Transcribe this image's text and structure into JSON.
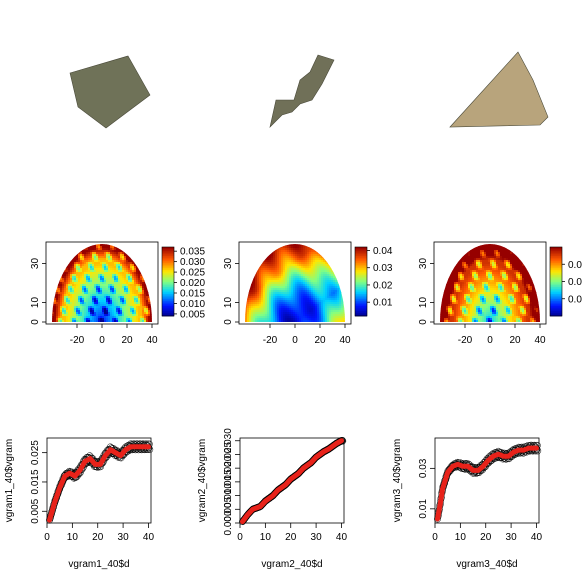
{
  "colors": {
    "patch1": "#6f7258",
    "patch2": "#707058",
    "patch3": "#b8a47c",
    "fit_line": "#e8221a",
    "points": "#000000"
  },
  "chart_data": [
    {
      "type": "image",
      "panel": "patch-1"
    },
    {
      "type": "image",
      "panel": "patch-2"
    },
    {
      "type": "image",
      "panel": "patch-3"
    },
    {
      "type": "heatmap",
      "panel": "vgram-map-1",
      "x_ticks": [
        "-20",
        "0",
        "20",
        "40"
      ],
      "y_ticks": [
        "0",
        "10",
        "30"
      ],
      "xlim": [
        -40,
        40
      ],
      "ylim": [
        0,
        40
      ],
      "colorbar_ticks": [
        "0.005",
        "0.010",
        "0.015",
        "0.020",
        "0.025",
        "0.030",
        "0.035"
      ],
      "value_range": [
        0.004,
        0.037
      ],
      "pattern": "periodic"
    },
    {
      "type": "heatmap",
      "panel": "vgram-map-2",
      "x_ticks": [
        "-20",
        "0",
        "20",
        "40"
      ],
      "y_ticks": [
        "0",
        "10",
        "30"
      ],
      "xlim": [
        -40,
        40
      ],
      "ylim": [
        0,
        40
      ],
      "colorbar_ticks": [
        "0.01",
        "0.02",
        "0.03",
        "0.04"
      ],
      "value_range": [
        0.002,
        0.042
      ],
      "pattern": "directional"
    },
    {
      "type": "heatmap",
      "panel": "vgram-map-3",
      "x_ticks": [
        "-20",
        "0",
        "20",
        "40"
      ],
      "y_ticks": [
        "0",
        "10",
        "30"
      ],
      "xlim": [
        -40,
        40
      ],
      "ylim": [
        0,
        40
      ],
      "colorbar_ticks": [
        "0.0",
        "0.0",
        "0.0"
      ],
      "value_range": [
        0.005,
        0.045
      ],
      "pattern": "periodic"
    },
    {
      "type": "scatter",
      "panel": "vgram1",
      "xlabel": "vgram1_40$d",
      "ylabel": "vgram1_40$vgram",
      "x_ticks": [
        "0",
        "10",
        "20",
        "30",
        "40"
      ],
      "y_ticks": [
        "0.005",
        "0.015",
        "0.025"
      ],
      "xlim": [
        0,
        41
      ],
      "ylim": [
        0.001,
        0.03
      ],
      "curve": [
        [
          1,
          0.002
        ],
        [
          3,
          0.008
        ],
        [
          5,
          0.013
        ],
        [
          7,
          0.017
        ],
        [
          9,
          0.018
        ],
        [
          11,
          0.017
        ],
        [
          13,
          0.019
        ],
        [
          15,
          0.022
        ],
        [
          17,
          0.023
        ],
        [
          19,
          0.021
        ],
        [
          21,
          0.021
        ],
        [
          23,
          0.024
        ],
        [
          25,
          0.026
        ],
        [
          27,
          0.025
        ],
        [
          29,
          0.024
        ],
        [
          31,
          0.026
        ],
        [
          33,
          0.027
        ],
        [
          35,
          0.027
        ],
        [
          37,
          0.027
        ],
        [
          39,
          0.027
        ],
        [
          40,
          0.027
        ]
      ]
    },
    {
      "type": "scatter",
      "panel": "vgram2",
      "xlabel": "vgram2_40$d",
      "ylabel": "vgram2_40$vgram",
      "x_ticks": [
        "0",
        "10",
        "20",
        "30",
        "40"
      ],
      "y_ticks": [
        "0.000",
        "0.005",
        "0.010",
        "0.015",
        "0.020",
        "0.025",
        "0.030"
      ],
      "xlim": [
        0,
        41
      ],
      "ylim": [
        0,
        0.031
      ],
      "curve": [
        [
          1,
          0.0005
        ],
        [
          3,
          0.003
        ],
        [
          5,
          0.005
        ],
        [
          8,
          0.006
        ],
        [
          10,
          0.008
        ],
        [
          13,
          0.01
        ],
        [
          15,
          0.012
        ],
        [
          18,
          0.014
        ],
        [
          20,
          0.016
        ],
        [
          23,
          0.018
        ],
        [
          25,
          0.02
        ],
        [
          28,
          0.022
        ],
        [
          30,
          0.024
        ],
        [
          33,
          0.026
        ],
        [
          35,
          0.027
        ],
        [
          38,
          0.029
        ],
        [
          40,
          0.03
        ]
      ]
    },
    {
      "type": "scatter",
      "panel": "vgram3",
      "xlabel": "vgram3_40$d",
      "ylabel": "vgram3_40$vgram",
      "x_ticks": [
        "0",
        "10",
        "20",
        "30",
        "40"
      ],
      "y_ticks": [
        "0.01",
        "0.03"
      ],
      "xlim": [
        0,
        41
      ],
      "ylim": [
        0.003,
        0.045
      ],
      "curve": [
        [
          1,
          0.005
        ],
        [
          2,
          0.012
        ],
        [
          3,
          0.02
        ],
        [
          5,
          0.028
        ],
        [
          7,
          0.031
        ],
        [
          9,
          0.032
        ],
        [
          11,
          0.031
        ],
        [
          13,
          0.031
        ],
        [
          15,
          0.029
        ],
        [
          17,
          0.029
        ],
        [
          19,
          0.031
        ],
        [
          21,
          0.034
        ],
        [
          23,
          0.036
        ],
        [
          25,
          0.037
        ],
        [
          27,
          0.036
        ],
        [
          29,
          0.036
        ],
        [
          31,
          0.038
        ],
        [
          33,
          0.039
        ],
        [
          35,
          0.039
        ],
        [
          37,
          0.04
        ],
        [
          39,
          0.04
        ],
        [
          40,
          0.04
        ]
      ]
    }
  ]
}
